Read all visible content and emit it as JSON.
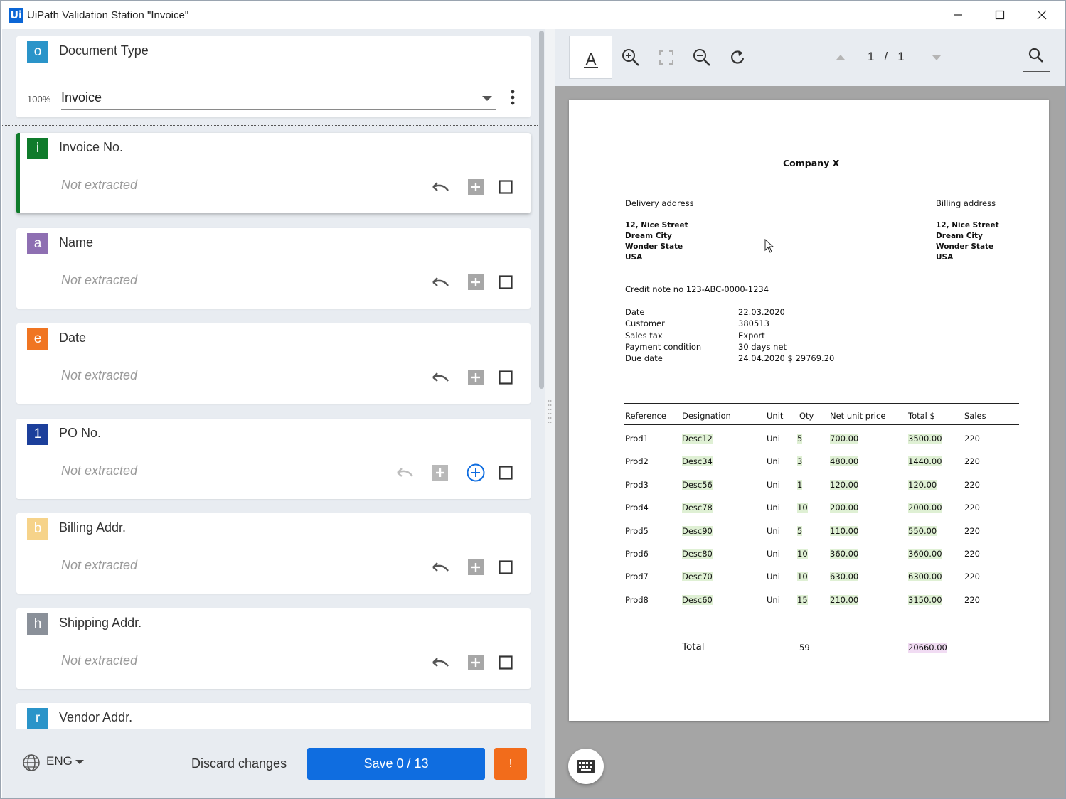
{
  "window": {
    "logo_text": "Ui",
    "title": "UiPath Validation Station \"Invoice\""
  },
  "document_type": {
    "badge": "o",
    "label": "Document Type",
    "confidence": "100%",
    "value": "Invoice"
  },
  "fields": [
    {
      "badge": "i",
      "badge_color": "#0f7b2b",
      "label": "Invoice No.",
      "status": "Not extracted"
    },
    {
      "badge": "a",
      "badge_color": "#8e6fb2",
      "label": "Name",
      "status": "Not extracted"
    },
    {
      "badge": "e",
      "badge_color": "#f07522",
      "label": "Date",
      "status": "Not extracted"
    },
    {
      "badge": "1",
      "badge_color": "#1c3f9b",
      "label": "PO No.",
      "status": "Not extracted"
    },
    {
      "badge": "b",
      "badge_color": "#f6d38a",
      "label": "Billing Addr.",
      "status": "Not extracted"
    },
    {
      "badge": "h",
      "badge_color": "#8a9099",
      "label": "Shipping Addr.",
      "status": "Not extracted"
    },
    {
      "badge": "r",
      "badge_color": "#2a94c9",
      "label": "Vendor Addr.",
      "status": ""
    }
  ],
  "footer": {
    "language": "ENG",
    "discard_label": "Discard changes",
    "save_label": "Save 0 / 13",
    "warning_label": "!"
  },
  "viewer": {
    "page_current": "1",
    "page_sep": "/",
    "page_total": "1"
  },
  "document": {
    "company": "Company X",
    "delivery_heading": "Delivery address",
    "billing_heading": "Billing address",
    "delivery_lines": [
      "12, Nice Street",
      "Dream City",
      "Wonder State",
      "USA"
    ],
    "billing_lines": [
      "12, Nice Street",
      "Dream City",
      "Wonder State",
      "USA"
    ],
    "credit_note": "Credit note no 123-ABC-0000-1234",
    "info": [
      {
        "key": "Date",
        "value": "22.03.2020"
      },
      {
        "key": "Customer",
        "value": "380513"
      },
      {
        "key": "Sales tax",
        "value": "Export"
      },
      {
        "key": "Payment condition",
        "value": "30 days net"
      },
      {
        "key": "Due date",
        "value": "24.04.2020 $ 29769.20"
      }
    ],
    "table_headers": [
      "Reference",
      "Designation",
      "Unit",
      "Qty",
      "Net unit price",
      "Total $",
      "Sales"
    ],
    "rows": [
      [
        "Prod1",
        "Desc12",
        "Uni",
        "5",
        "700.00",
        "3500.00",
        "220"
      ],
      [
        "Prod2",
        "Desc34",
        "Uni",
        "3",
        "480.00",
        "1440.00",
        "220"
      ],
      [
        "Prod3",
        "Desc56",
        "Uni",
        "1",
        "120.00",
        "120.00",
        "220"
      ],
      [
        "Prod4",
        "Desc78",
        "Uni",
        "10",
        "200.00",
        "2000.00",
        "220"
      ],
      [
        "Prod5",
        "Desc90",
        "Uni",
        "5",
        "110.00",
        "550.00",
        "220"
      ],
      [
        "Prod6",
        "Desc80",
        "Uni",
        "10",
        "360.00",
        "3600.00",
        "220"
      ],
      [
        "Prod7",
        "Desc70",
        "Uni",
        "10",
        "630.00",
        "6300.00",
        "220"
      ],
      [
        "Prod8",
        "Desc60",
        "Uni",
        "15",
        "210.00",
        "3150.00",
        "220"
      ]
    ],
    "total_label": "Total",
    "total_qty": "59",
    "total_amount": "20660.00"
  },
  "icons": {
    "undo": "undo-icon",
    "add": "add-box-icon",
    "add_circle": "add-circle-icon",
    "checkbox": "checkbox-icon",
    "globe": "globe-icon",
    "keyboard": "keyboard-icon",
    "search": "search-icon"
  }
}
